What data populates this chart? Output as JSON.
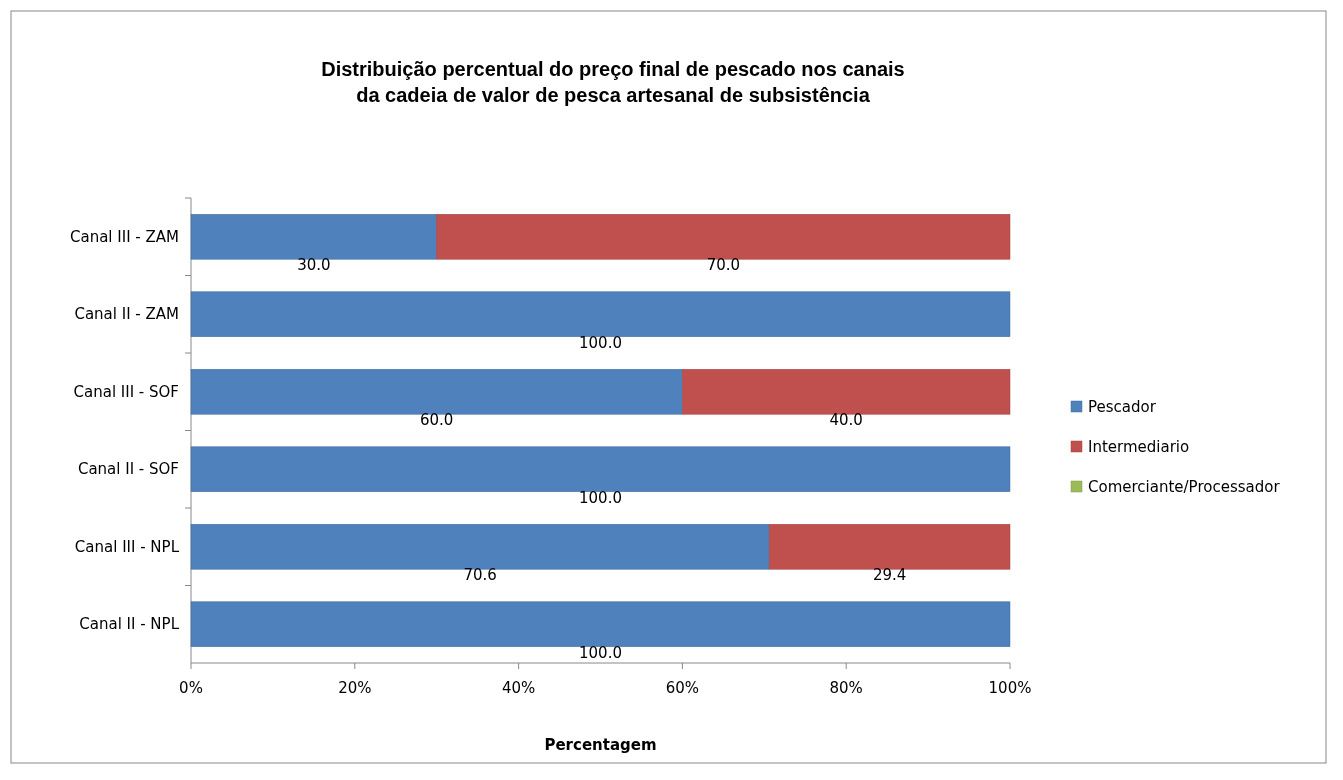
{
  "chart_data": {
    "type": "bar",
    "orientation": "horizontal",
    "stacked": true,
    "title": "Distribuição percentual do preço final de pescado nos canais\nda cadeia de valor de pesca artesanal  de subsistência",
    "xlabel": "Percentagem",
    "categories": [
      "Canal III - ZAM",
      "Canal II - ZAM",
      "Canal III - SOF",
      "Canal II - SOF",
      "Canal III - NPL",
      "Canal II - NPL"
    ],
    "series": [
      {
        "name": "Pescador",
        "color": "#4f81bd",
        "values": [
          30.0,
          100.0,
          60.0,
          100.0,
          70.6,
          100.0
        ],
        "value_labels": [
          "30.0",
          "100.0",
          "60.0",
          "100.0",
          "70.6",
          "100.0"
        ]
      },
      {
        "name": "Intermediario",
        "color": "#c0504d",
        "values": [
          70.0,
          0,
          40.0,
          0,
          29.4,
          0
        ],
        "value_labels": [
          "70.0",
          null,
          "40.0",
          null,
          "29.4",
          null
        ]
      },
      {
        "name": "Comerciante/Processador",
        "color": "#9bbb59",
        "values": [
          0,
          0,
          0,
          0,
          0,
          0
        ]
      }
    ],
    "xlim": [
      0,
      100
    ],
    "xticks": [
      {
        "value": 0,
        "label": "0%"
      },
      {
        "value": 20,
        "label": "20%"
      },
      {
        "value": 40,
        "label": "40%"
      },
      {
        "value": 60,
        "label": "60%"
      },
      {
        "value": 80,
        "label": "80%"
      },
      {
        "value": 100,
        "label": "100%"
      }
    ],
    "grid": false,
    "legend": "right"
  }
}
